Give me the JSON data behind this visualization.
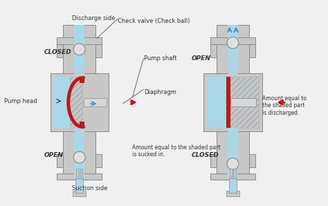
{
  "bg_color": "#f0f0f0",
  "blue_light": "#a8d8ea",
  "blue_mid": "#7ec8e3",
  "blue_channel": "#5bb8d4",
  "gray_body": "#c8c8c8",
  "gray_light": "#e0e0e0",
  "gray_dark": "#999999",
  "hatch_gray": "#d0d0d0",
  "red_color": "#cc1111",
  "shaft_gray": "#d8d8d8",
  "white": "#ffffff",
  "text_color": "#333333",
  "arrow_blue": "#4499bb",
  "labels_left": {
    "discharge": "Discharge side",
    "check_valve": "Check valve (Check ball)",
    "pump_shaft": "Pump shaft",
    "pump_head": "Pump head",
    "diaphragm": "Diaphragm",
    "closed_top": "CLOSED",
    "open_bottom": "OPEN",
    "suction": "Suction side",
    "amount": "Amount equal to the shaded part\nis sucked in."
  },
  "labels_right": {
    "open_top": "OPEN",
    "closed_bottom": "CLOSED",
    "amount": "Amount equal to\nthe shaded part\nis discharged."
  }
}
